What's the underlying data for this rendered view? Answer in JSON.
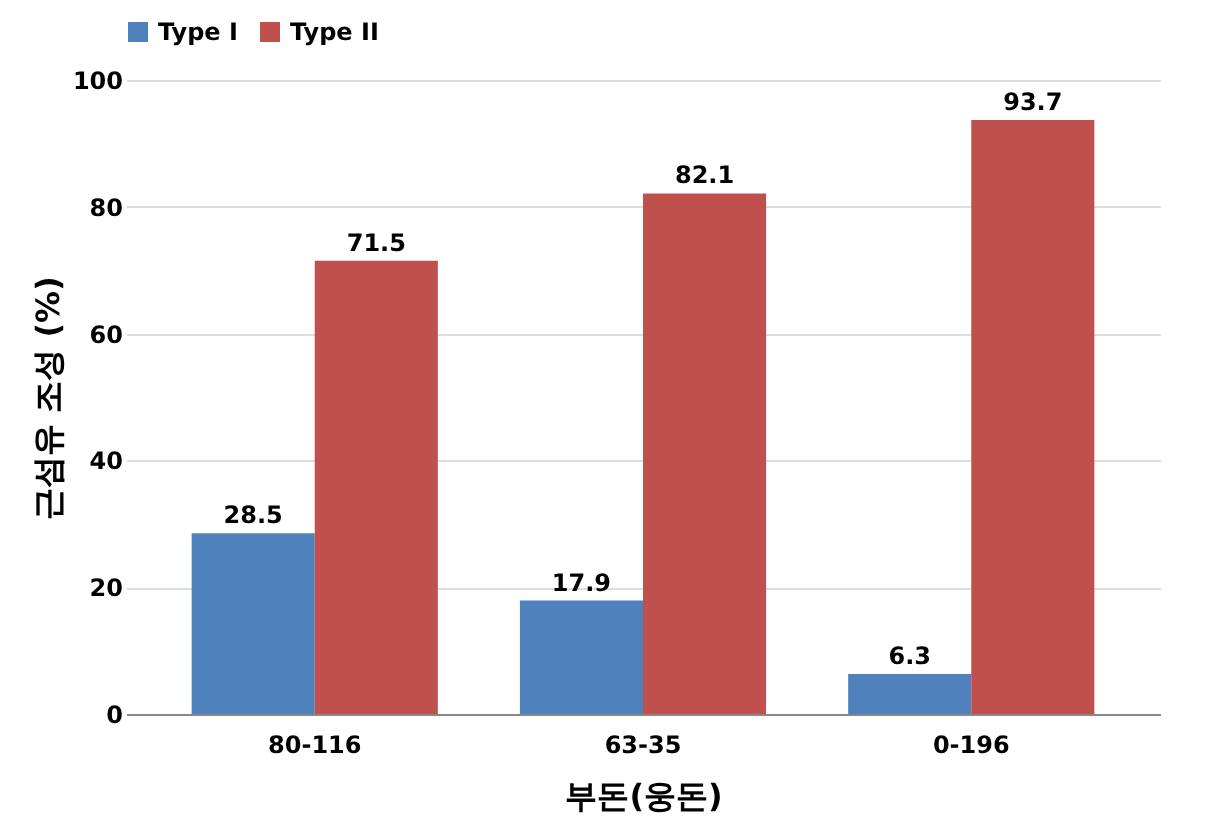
{
  "chart_data": {
    "type": "bar",
    "xlabel": "부돈(웅돈)",
    "ylabel": "근섬유 조성 (%)",
    "categories": [
      "80-116",
      "63-35",
      "0-196"
    ],
    "series": [
      {
        "name": "Type I",
        "color": "#4f81bd",
        "values": [
          28.5,
          17.9,
          6.3
        ]
      },
      {
        "name": "Type II",
        "color": "#c0504d",
        "values": [
          71.5,
          82.1,
          93.7
        ]
      }
    ],
    "ylim": [
      0,
      100
    ],
    "yticks": [
      0,
      20,
      40,
      60,
      80,
      100
    ],
    "grid": "y",
    "legend": "top",
    "data_labels": true
  }
}
